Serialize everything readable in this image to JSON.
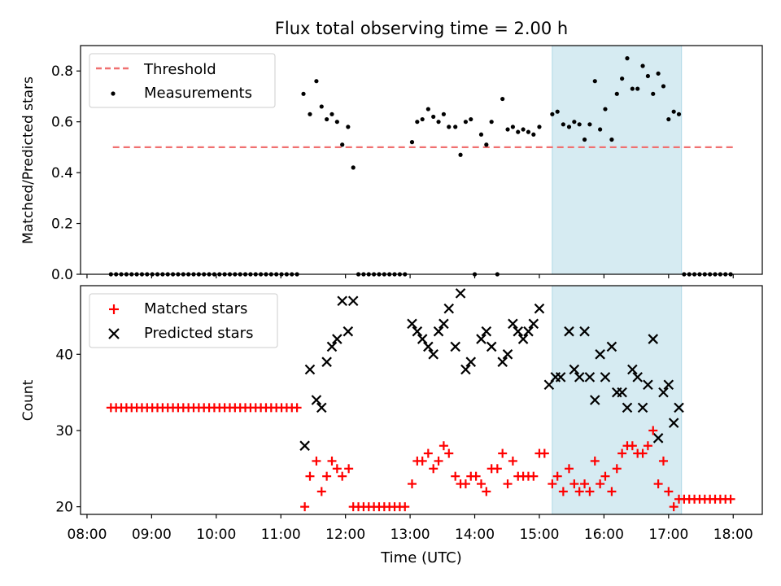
{
  "chart_data": {
    "type": "scatter",
    "title": "Flux total observing time = 2.00 h",
    "xlabel": "Time (UTC)",
    "x_ticks": [
      "08:00",
      "09:00",
      "10:00",
      "11:00",
      "12:00",
      "13:00",
      "14:00",
      "15:00",
      "16:00",
      "17:00",
      "18:00"
    ],
    "x_range_hours": [
      7.9,
      18.45
    ],
    "highlight_span_hours": [
      15.2,
      17.2
    ],
    "highlight_color": "#add8e6",
    "top_panel": {
      "ylabel": "Matched/Predicted stars",
      "ylim": [
        0,
        0.9
      ],
      "y_ticks": [
        "0.0",
        "0.2",
        "0.4",
        "0.6",
        "0.8"
      ],
      "legend": {
        "placement": "top-left",
        "threshold_label": "Threshold",
        "measurements_label": "Measurements"
      },
      "threshold": {
        "value": 0.5,
        "x_range_hours": [
          8.4,
          18.0
        ],
        "color": "#f07070"
      },
      "measurements": {
        "name": "Measurements",
        "color": "#000000",
        "points": [
          [
            8.37,
            0
          ],
          [
            8.45,
            0
          ],
          [
            8.53,
            0
          ],
          [
            8.61,
            0
          ],
          [
            8.69,
            0
          ],
          [
            8.77,
            0
          ],
          [
            8.85,
            0
          ],
          [
            8.93,
            0
          ],
          [
            9.01,
            0
          ],
          [
            9.09,
            0
          ],
          [
            9.17,
            0
          ],
          [
            9.25,
            0
          ],
          [
            9.33,
            0
          ],
          [
            9.41,
            0
          ],
          [
            9.49,
            0
          ],
          [
            9.57,
            0
          ],
          [
            9.65,
            0
          ],
          [
            9.73,
            0
          ],
          [
            9.81,
            0
          ],
          [
            9.89,
            0
          ],
          [
            9.97,
            0
          ],
          [
            10.05,
            0
          ],
          [
            10.13,
            0
          ],
          [
            10.21,
            0
          ],
          [
            10.29,
            0
          ],
          [
            10.37,
            0
          ],
          [
            10.45,
            0
          ],
          [
            10.53,
            0
          ],
          [
            10.61,
            0
          ],
          [
            10.69,
            0
          ],
          [
            10.77,
            0
          ],
          [
            10.85,
            0
          ],
          [
            10.93,
            0
          ],
          [
            11.01,
            0
          ],
          [
            11.09,
            0
          ],
          [
            11.17,
            0
          ],
          [
            11.25,
            0
          ],
          [
            11.35,
            0.71
          ],
          [
            11.45,
            0.63
          ],
          [
            11.55,
            0.76
          ],
          [
            11.63,
            0.66
          ],
          [
            11.71,
            0.61
          ],
          [
            11.79,
            0.63
          ],
          [
            11.87,
            0.6
          ],
          [
            11.95,
            0.51
          ],
          [
            12.04,
            0.58
          ],
          [
            12.12,
            0.42
          ],
          [
            12.2,
            0
          ],
          [
            12.28,
            0
          ],
          [
            12.36,
            0
          ],
          [
            12.44,
            0
          ],
          [
            12.52,
            0
          ],
          [
            12.6,
            0
          ],
          [
            12.68,
            0
          ],
          [
            12.76,
            0
          ],
          [
            12.84,
            0
          ],
          [
            12.92,
            0
          ],
          [
            13.03,
            0.52
          ],
          [
            13.11,
            0.6
          ],
          [
            13.19,
            0.61
          ],
          [
            13.28,
            0.65
          ],
          [
            13.36,
            0.62
          ],
          [
            13.44,
            0.6
          ],
          [
            13.52,
            0.63
          ],
          [
            13.6,
            0.58
          ],
          [
            13.7,
            0.58
          ],
          [
            13.78,
            0.47
          ],
          [
            13.86,
            0.6
          ],
          [
            13.94,
            0.61
          ],
          [
            14.0,
            0
          ],
          [
            14.1,
            0.55
          ],
          [
            14.18,
            0.51
          ],
          [
            14.26,
            0.6
          ],
          [
            14.35,
            0
          ],
          [
            14.43,
            0.69
          ],
          [
            14.51,
            0.57
          ],
          [
            14.59,
            0.58
          ],
          [
            14.67,
            0.56
          ],
          [
            14.75,
            0.57
          ],
          [
            14.83,
            0.56
          ],
          [
            14.91,
            0.55
          ],
          [
            15.0,
            0.58
          ],
          [
            15.2,
            0.63
          ],
          [
            15.28,
            0.64
          ],
          [
            15.37,
            0.59
          ],
          [
            15.46,
            0.58
          ],
          [
            15.54,
            0.6
          ],
          [
            15.62,
            0.59
          ],
          [
            15.7,
            0.53
          ],
          [
            15.78,
            0.59
          ],
          [
            15.86,
            0.76
          ],
          [
            15.94,
            0.57
          ],
          [
            16.02,
            0.65
          ],
          [
            16.12,
            0.53
          ],
          [
            16.2,
            0.71
          ],
          [
            16.28,
            0.77
          ],
          [
            16.36,
            0.85
          ],
          [
            16.44,
            0.73
          ],
          [
            16.52,
            0.73
          ],
          [
            16.6,
            0.82
          ],
          [
            16.68,
            0.78
          ],
          [
            16.76,
            0.71
          ],
          [
            16.84,
            0.79
          ],
          [
            16.92,
            0.74
          ],
          [
            17.0,
            0.61
          ],
          [
            17.08,
            0.64
          ],
          [
            17.16,
            0.63
          ],
          [
            17.24,
            0
          ],
          [
            17.32,
            0
          ],
          [
            17.4,
            0
          ],
          [
            17.48,
            0
          ],
          [
            17.56,
            0
          ],
          [
            17.64,
            0
          ],
          [
            17.72,
            0
          ],
          [
            17.8,
            0
          ],
          [
            17.88,
            0
          ],
          [
            17.96,
            0
          ]
        ]
      }
    },
    "bottom_panel": {
      "ylabel": "Count",
      "ylim": [
        19,
        49
      ],
      "y_ticks": [
        "20",
        "30",
        "40"
      ],
      "legend": {
        "placement": "top-left",
        "matched_label": "Matched stars",
        "predicted_label": "Predicted stars"
      },
      "matched": {
        "name": "Matched stars",
        "color": "#ff0000",
        "points": [
          [
            8.37,
            33
          ],
          [
            8.45,
            33
          ],
          [
            8.53,
            33
          ],
          [
            8.61,
            33
          ],
          [
            8.69,
            33
          ],
          [
            8.77,
            33
          ],
          [
            8.85,
            33
          ],
          [
            8.93,
            33
          ],
          [
            9.01,
            33
          ],
          [
            9.09,
            33
          ],
          [
            9.17,
            33
          ],
          [
            9.25,
            33
          ],
          [
            9.33,
            33
          ],
          [
            9.41,
            33
          ],
          [
            9.49,
            33
          ],
          [
            9.57,
            33
          ],
          [
            9.65,
            33
          ],
          [
            9.73,
            33
          ],
          [
            9.81,
            33
          ],
          [
            9.89,
            33
          ],
          [
            9.97,
            33
          ],
          [
            10.05,
            33
          ],
          [
            10.13,
            33
          ],
          [
            10.21,
            33
          ],
          [
            10.29,
            33
          ],
          [
            10.37,
            33
          ],
          [
            10.45,
            33
          ],
          [
            10.53,
            33
          ],
          [
            10.61,
            33
          ],
          [
            10.69,
            33
          ],
          [
            10.77,
            33
          ],
          [
            10.85,
            33
          ],
          [
            10.93,
            33
          ],
          [
            11.01,
            33
          ],
          [
            11.09,
            33
          ],
          [
            11.17,
            33
          ],
          [
            11.25,
            33
          ],
          [
            11.37,
            20
          ],
          [
            11.45,
            24
          ],
          [
            11.55,
            26
          ],
          [
            11.63,
            22
          ],
          [
            11.71,
            24
          ],
          [
            11.79,
            26
          ],
          [
            11.87,
            25
          ],
          [
            11.95,
            24
          ],
          [
            12.05,
            25
          ],
          [
            12.12,
            20
          ],
          [
            12.2,
            20
          ],
          [
            12.28,
            20
          ],
          [
            12.36,
            20
          ],
          [
            12.44,
            20
          ],
          [
            12.52,
            20
          ],
          [
            12.6,
            20
          ],
          [
            12.68,
            20
          ],
          [
            12.76,
            20
          ],
          [
            12.84,
            20
          ],
          [
            12.92,
            20
          ],
          [
            13.03,
            23
          ],
          [
            13.11,
            26
          ],
          [
            13.19,
            26
          ],
          [
            13.28,
            27
          ],
          [
            13.36,
            25
          ],
          [
            13.44,
            26
          ],
          [
            13.52,
            28
          ],
          [
            13.6,
            27
          ],
          [
            13.7,
            24
          ],
          [
            13.78,
            23
          ],
          [
            13.86,
            23
          ],
          [
            13.94,
            24
          ],
          [
            14.02,
            24
          ],
          [
            14.1,
            23
          ],
          [
            14.18,
            22
          ],
          [
            14.26,
            25
          ],
          [
            14.35,
            25
          ],
          [
            14.43,
            27
          ],
          [
            14.51,
            23
          ],
          [
            14.59,
            26
          ],
          [
            14.67,
            24
          ],
          [
            14.75,
            24
          ],
          [
            14.83,
            24
          ],
          [
            14.91,
            24
          ],
          [
            15.0,
            27
          ],
          [
            15.08,
            27
          ],
          [
            15.2,
            23
          ],
          [
            15.28,
            24
          ],
          [
            15.37,
            22
          ],
          [
            15.46,
            25
          ],
          [
            15.54,
            23
          ],
          [
            15.62,
            22
          ],
          [
            15.7,
            23
          ],
          [
            15.78,
            22
          ],
          [
            15.86,
            26
          ],
          [
            15.94,
            23
          ],
          [
            16.02,
            24
          ],
          [
            16.12,
            22
          ],
          [
            16.2,
            25
          ],
          [
            16.28,
            27
          ],
          [
            16.36,
            28
          ],
          [
            16.44,
            28
          ],
          [
            16.52,
            27
          ],
          [
            16.6,
            27
          ],
          [
            16.68,
            28
          ],
          [
            16.76,
            30
          ],
          [
            16.84,
            23
          ],
          [
            16.92,
            26
          ],
          [
            17.0,
            22
          ],
          [
            17.08,
            20
          ],
          [
            17.16,
            21
          ],
          [
            17.24,
            21
          ],
          [
            17.32,
            21
          ],
          [
            17.4,
            21
          ],
          [
            17.48,
            21
          ],
          [
            17.56,
            21
          ],
          [
            17.64,
            21
          ],
          [
            17.72,
            21
          ],
          [
            17.8,
            21
          ],
          [
            17.88,
            21
          ],
          [
            17.96,
            21
          ]
        ]
      },
      "predicted": {
        "name": "Predicted stars",
        "color": "#000000",
        "points": [
          [
            11.37,
            28
          ],
          [
            11.45,
            38
          ],
          [
            11.55,
            34
          ],
          [
            11.63,
            33
          ],
          [
            11.71,
            39
          ],
          [
            11.79,
            41
          ],
          [
            11.87,
            42
          ],
          [
            11.95,
            47
          ],
          [
            12.04,
            43
          ],
          [
            12.12,
            47
          ],
          [
            13.03,
            44
          ],
          [
            13.11,
            43
          ],
          [
            13.19,
            42
          ],
          [
            13.28,
            41
          ],
          [
            13.36,
            40
          ],
          [
            13.44,
            43
          ],
          [
            13.52,
            44
          ],
          [
            13.6,
            46
          ],
          [
            13.7,
            41
          ],
          [
            13.78,
            48
          ],
          [
            13.86,
            38
          ],
          [
            13.94,
            39
          ],
          [
            14.1,
            42
          ],
          [
            14.18,
            43
          ],
          [
            14.26,
            41
          ],
          [
            14.43,
            39
          ],
          [
            14.51,
            40
          ],
          [
            14.59,
            44
          ],
          [
            14.67,
            43
          ],
          [
            14.75,
            42
          ],
          [
            14.83,
            43
          ],
          [
            14.91,
            44
          ],
          [
            15.0,
            46
          ],
          [
            15.15,
            36
          ],
          [
            15.25,
            37
          ],
          [
            15.33,
            37
          ],
          [
            15.46,
            43
          ],
          [
            15.54,
            38
          ],
          [
            15.62,
            37
          ],
          [
            15.7,
            43
          ],
          [
            15.78,
            37
          ],
          [
            15.86,
            34
          ],
          [
            15.94,
            40
          ],
          [
            16.02,
            37
          ],
          [
            16.12,
            41
          ],
          [
            16.2,
            35
          ],
          [
            16.28,
            35
          ],
          [
            16.36,
            33
          ],
          [
            16.44,
            38
          ],
          [
            16.52,
            37
          ],
          [
            16.6,
            33
          ],
          [
            16.68,
            36
          ],
          [
            16.76,
            42
          ],
          [
            16.84,
            29
          ],
          [
            16.92,
            35
          ],
          [
            17.0,
            36
          ],
          [
            17.08,
            31
          ],
          [
            17.16,
            33
          ]
        ]
      }
    }
  }
}
